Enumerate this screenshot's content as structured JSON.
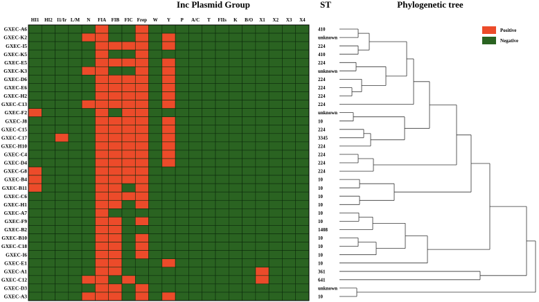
{
  "titles": {
    "group": "Inc Plasmid Group",
    "st": "ST",
    "tree": "Phylogenetic tree"
  },
  "colors": {
    "positive": "#ec4b2a",
    "negative": "#2a6321",
    "grid": "#0c2a0c"
  },
  "legend": [
    {
      "key": "positive",
      "label": "Positive"
    },
    {
      "key": "negative",
      "label": "Negative"
    }
  ],
  "chart_data": {
    "type": "heatmap",
    "columns": [
      "HI1",
      "HI2",
      "I1/Ir",
      "L/M",
      "N",
      "FIA",
      "FIB",
      "FIC",
      "Frep",
      "W",
      "Y",
      "P",
      "A/C",
      "T",
      "FIIs",
      "K",
      "B/O",
      "X1",
      "X2",
      "X3",
      "X4"
    ],
    "rows": [
      {
        "isolate": "GXEC-A6",
        "st": "410",
        "positive": [
          "FIA",
          "Frep"
        ]
      },
      {
        "isolate": "GXEC-K2",
        "st": "unknown",
        "positive": [
          "N",
          "FIA",
          "Frep",
          "Y"
        ]
      },
      {
        "isolate": "GXEC-I5",
        "st": "224",
        "positive": [
          "FIA",
          "FIB",
          "FIC",
          "Frep",
          "Y"
        ]
      },
      {
        "isolate": "GXEC-K5",
        "st": "410",
        "positive": [
          "FIA",
          "Frep"
        ]
      },
      {
        "isolate": "GXEC-E5",
        "st": "224",
        "positive": [
          "FIA",
          "FIB",
          "FIC",
          "Frep",
          "Y"
        ]
      },
      {
        "isolate": "GXEC-K3",
        "st": "unknown",
        "positive": [
          "N",
          "FIA",
          "Frep",
          "Y"
        ]
      },
      {
        "isolate": "GXEC-D6",
        "st": "224",
        "positive": [
          "FIA",
          "FIB",
          "FIC",
          "Frep",
          "Y"
        ]
      },
      {
        "isolate": "GXEC-E6",
        "st": "224",
        "positive": [
          "FIA",
          "FIB",
          "FIC",
          "Frep",
          "Y"
        ]
      },
      {
        "isolate": "GXEC-H2",
        "st": "224",
        "positive": [
          "FIA",
          "FIB",
          "FIC",
          "Frep",
          "Y"
        ]
      },
      {
        "isolate": "GXEC-C13",
        "st": "224",
        "positive": [
          "N",
          "FIA",
          "FIB",
          "FIC",
          "Frep",
          "Y"
        ]
      },
      {
        "isolate": "GXEC-F2",
        "st": "unknown",
        "positive": [
          "HI1",
          "FIA",
          "FIC",
          "Frep"
        ]
      },
      {
        "isolate": "GXEC-J8",
        "st": "10",
        "positive": [
          "FIA",
          "FIB",
          "FIC",
          "Frep",
          "Y"
        ]
      },
      {
        "isolate": "GXEC-C15",
        "st": "224",
        "positive": [
          "FIA",
          "FIB",
          "FIC",
          "Frep",
          "Y"
        ]
      },
      {
        "isolate": "GXEC-C17",
        "st": "3345",
        "positive": [
          "I1/Ir",
          "FIA",
          "FIB",
          "FIC",
          "Frep",
          "Y"
        ]
      },
      {
        "isolate": "GXEC-H10",
        "st": "224",
        "positive": [
          "FIA",
          "FIB",
          "FIC",
          "Frep",
          "Y"
        ]
      },
      {
        "isolate": "GXEC-C4",
        "st": "224",
        "positive": [
          "FIA",
          "FIB",
          "FIC",
          "Frep",
          "Y"
        ]
      },
      {
        "isolate": "GXEC-D4",
        "st": "224",
        "positive": [
          "FIA",
          "FIB",
          "FIC",
          "Frep",
          "Y"
        ]
      },
      {
        "isolate": "GXEC-G8",
        "st": "224",
        "positive": [
          "HI1",
          "FIA",
          "FIB",
          "FIC",
          "Frep"
        ]
      },
      {
        "isolate": "GXEC-B4",
        "st": "10",
        "positive": [
          "HI1",
          "FIA",
          "FIB",
          "FIC",
          "Frep"
        ]
      },
      {
        "isolate": "GXEC-B11",
        "st": "10",
        "positive": [
          "HI1",
          "FIA",
          "FIB",
          "Frep"
        ]
      },
      {
        "isolate": "GXEC-C6",
        "st": "10",
        "positive": [
          "FIA",
          "FIB",
          "FIC",
          "Frep"
        ]
      },
      {
        "isolate": "GXEC-H1",
        "st": "10",
        "positive": [
          "FIA",
          "FIB",
          "Frep"
        ]
      },
      {
        "isolate": "GXEC-A7",
        "st": "10",
        "positive": [
          "FIA"
        ]
      },
      {
        "isolate": "GXEC-F9",
        "st": "10",
        "positive": [
          "FIA",
          "FIB",
          "Frep"
        ]
      },
      {
        "isolate": "GXEC-B2",
        "st": "1408",
        "positive": [
          "FIA",
          "FIB"
        ]
      },
      {
        "isolate": "GXEC-B10",
        "st": "10",
        "positive": [
          "FIA",
          "FIB",
          "Frep"
        ]
      },
      {
        "isolate": "GXEC-C18",
        "st": "10",
        "positive": [
          "FIA",
          "FIB",
          "Frep"
        ]
      },
      {
        "isolate": "GXEC-I6",
        "st": "10",
        "positive": [
          "FIA",
          "FIB",
          "Frep"
        ]
      },
      {
        "isolate": "GXEC-E1",
        "st": "10",
        "positive": [
          "FIA",
          "FIB",
          "Y"
        ]
      },
      {
        "isolate": "GXEC-A1",
        "st": "361",
        "positive": [
          "FIA",
          "FIB",
          "X1"
        ]
      },
      {
        "isolate": "GXEC-C12",
        "st": "641",
        "positive": [
          "N",
          "FIA",
          "FIC",
          "X1"
        ]
      },
      {
        "isolate": "GXEC-D3",
        "st": "unknown",
        "positive": [
          "FIA",
          "FIB",
          "Frep"
        ]
      },
      {
        "isolate": "GXEC-A3",
        "st": "10",
        "positive": [
          "N",
          "FIA",
          "FIB",
          "Frep",
          "Y"
        ]
      }
    ],
    "tree": [
      [
        "GXEC-A6",
        "GXEC-K2"
      ],
      [
        "GXEC-I5",
        "GXEC-K5"
      ],
      [
        "GXEC-E5",
        "GXEC-K3"
      ],
      [
        "GXEC-E6",
        "GXEC-H2"
      ],
      [
        "GXEC-D6",
        [
          "GXEC-E6",
          "GXEC-H2"
        ]
      ],
      [
        "GXEC-F2",
        "GXEC-J8"
      ],
      [
        "GXEC-C15",
        "GXEC-C17"
      ],
      [
        "GXEC-C4",
        "GXEC-D4"
      ],
      [
        "GXEC-G8",
        "GXEC-B4"
      ],
      [
        "GXEC-C6",
        "GXEC-H1"
      ],
      [
        "GXEC-A7",
        "GXEC-F9"
      ],
      [
        "GXEC-B10",
        "GXEC-C18"
      ],
      [
        "GXEC-D3",
        "GXEC-A3"
      ]
    ]
  }
}
